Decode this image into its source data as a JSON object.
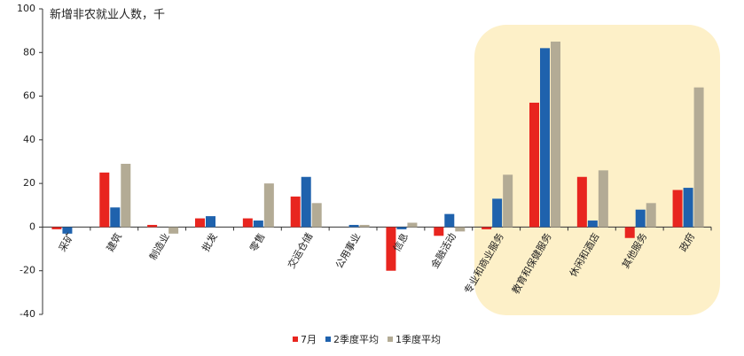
{
  "chart_data": {
    "type": "bar",
    "title": "新增非农就业人数，千",
    "categories": [
      "采矿",
      "建筑",
      "制造业",
      "批发",
      "零售",
      "交运仓储",
      "公用事业",
      "信息",
      "金融活动",
      "专业和商业服务",
      "教育和保健服务",
      "休闲和酒店",
      "其他服务",
      "政府"
    ],
    "series": [
      {
        "name": "7月",
        "color": "#e8251f",
        "values": [
          -1,
          25,
          1,
          4,
          4,
          14,
          0,
          -20,
          -4,
          -1,
          57,
          23,
          -5,
          17
        ]
      },
      {
        "name": "2季度平均",
        "color": "#1f62ad",
        "values": [
          -3,
          9,
          0,
          5,
          3,
          23,
          1,
          -1,
          6,
          13,
          82,
          3,
          8,
          18
        ]
      },
      {
        "name": "1季度平均",
        "color": "#b3ab95",
        "values": [
          0,
          29,
          -3,
          0,
          20,
          11,
          1,
          2,
          -2,
          24,
          85,
          26,
          11,
          64
        ]
      }
    ],
    "ylim": [
      -40,
      100
    ],
    "yticks": [
      -40,
      -20,
      0,
      20,
      40,
      60,
      80,
      100
    ],
    "grid": false,
    "legend": "bottom"
  }
}
